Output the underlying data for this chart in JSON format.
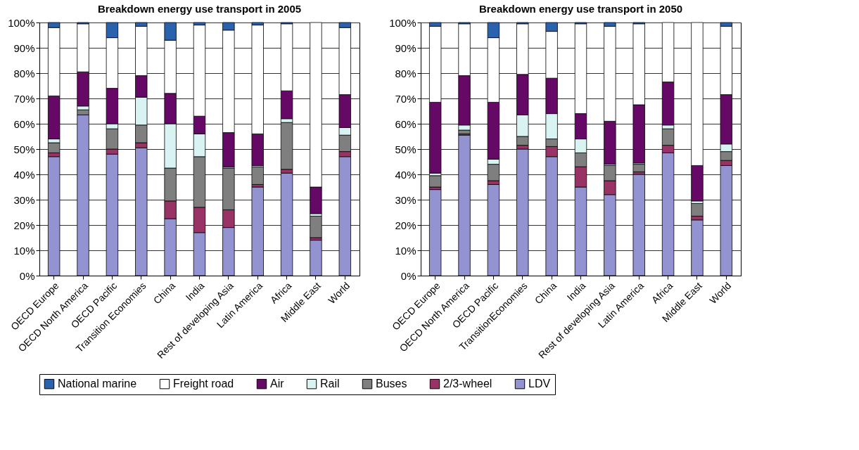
{
  "chart_data": [
    {
      "type": "bar",
      "title": "Breakdown energy use transport in 2005",
      "stacked": true,
      "grid": "y",
      "legend": "bottom",
      "categories": [
        "OECD Europe",
        "OECD North America",
        "OECD Pacific",
        "Transition Economies",
        "China",
        "India",
        "Rest of developing Asia",
        "Latin America",
        "Africa",
        "Middle East",
        "World"
      ],
      "ylim": [
        0,
        100
      ],
      "yticks": [
        {
          "value": 0,
          "label": "0%"
        },
        {
          "value": 10,
          "label": "10%"
        },
        {
          "value": 20,
          "label": "20%"
        },
        {
          "value": 30,
          "label": "30%"
        },
        {
          "value": 40,
          "label": "40%"
        },
        {
          "value": 50,
          "label": "50%"
        },
        {
          "value": 60,
          "label": "60%"
        },
        {
          "value": 70,
          "label": "70%"
        },
        {
          "value": 80,
          "label": "80%"
        },
        {
          "value": 90,
          "label": "90%"
        },
        {
          "value": 100,
          "label": "100%"
        }
      ],
      "series": [
        {
          "name": "LDV",
          "color": "#9393d2",
          "values": [
            47,
            63.5,
            48,
            50.5,
            22.5,
            17,
            19,
            35,
            40.5,
            14,
            47
          ]
        },
        {
          "name": "2/3-wheel",
          "color": "#993366",
          "values": [
            1.5,
            0,
            2,
            2,
            7,
            10,
            7,
            1,
            1.5,
            1,
            2
          ]
        },
        {
          "name": "Buses",
          "color": "#7f7f7f",
          "values": [
            4,
            2,
            8,
            7,
            13,
            20,
            16.5,
            7,
            18.5,
            8.5,
            6.5
          ]
        },
        {
          "name": "Rail",
          "color": "#d9f3f3",
          "values": [
            1.5,
            1.5,
            2,
            11,
            17.5,
            9,
            0.5,
            0.5,
            1.5,
            1,
            3
          ]
        },
        {
          "name": "Air",
          "color": "#660966",
          "values": [
            17,
            13.5,
            14,
            8.5,
            12,
            7,
            13.5,
            12.5,
            11,
            10.5,
            13
          ]
        },
        {
          "name": "Freight road",
          "color": "#ffffff",
          "values": [
            27,
            19,
            20,
            19.5,
            21,
            36,
            40.5,
            43,
            26.5,
            65,
            26.5
          ]
        },
        {
          "name": "National marine",
          "color": "#2a62ad",
          "values": [
            2,
            0.5,
            6,
            1.5,
            7,
            1,
            3,
            1,
            0.5,
            0,
            2
          ]
        }
      ]
    },
    {
      "type": "bar",
      "title": "Breakdown energy use transport in 2050",
      "stacked": true,
      "grid": "y",
      "legend": "bottom",
      "categories": [
        "OECD Europe",
        "OECD North America",
        "OECD Pacific",
        "TransitionEconomies",
        "China",
        "India",
        "Rest of developing Asia",
        "Latin America",
        "Africa",
        "Middle East",
        "World"
      ],
      "ylim": [
        0,
        100
      ],
      "yticks": [
        {
          "value": 0,
          "label": "0%"
        },
        {
          "value": 10,
          "label": "10%"
        },
        {
          "value": 20,
          "label": "20%"
        },
        {
          "value": 30,
          "label": "30%"
        },
        {
          "value": 40,
          "label": "40%"
        },
        {
          "value": 50,
          "label": "50%"
        },
        {
          "value": 60,
          "label": "60%"
        },
        {
          "value": 70,
          "label": "70%"
        },
        {
          "value": 80,
          "label": "80%"
        },
        {
          "value": 90,
          "label": "90%"
        },
        {
          "value": 100,
          "label": "100%"
        }
      ],
      "series": [
        {
          "name": "LDV",
          "color": "#9393d2",
          "values": [
            34,
            55.5,
            36,
            50,
            47,
            35,
            32,
            40,
            48.5,
            22,
            43.5
          ]
        },
        {
          "name": "2/3-wheel",
          "color": "#993366",
          "values": [
            1,
            0.5,
            1.5,
            1.5,
            4,
            8,
            5.5,
            1,
            3,
            1.5,
            2
          ]
        },
        {
          "name": "Buses",
          "color": "#7f7f7f",
          "values": [
            4.5,
            1.5,
            6.5,
            3.5,
            3,
            5.5,
            6,
            3,
            6.5,
            5,
            3.5
          ]
        },
        {
          "name": "Rail",
          "color": "#d9f3f3",
          "values": [
            1,
            2,
            2,
            8.5,
            10,
            5.5,
            0.5,
            0.5,
            1.5,
            1,
            3
          ]
        },
        {
          "name": "Air",
          "color": "#660966",
          "values": [
            28,
            19.5,
            22.5,
            16,
            14,
            10,
            17,
            23,
            17,
            14,
            19.5
          ]
        },
        {
          "name": "Freight road",
          "color": "#ffffff",
          "values": [
            30,
            20.5,
            25.5,
            20,
            18.5,
            35.5,
            37.5,
            32,
            23.5,
            56.5,
            27
          ]
        },
        {
          "name": "National marine",
          "color": "#2a62ad",
          "values": [
            1.5,
            0.5,
            6,
            0.5,
            3.5,
            0.5,
            1.5,
            0.5,
            0,
            0,
            1.5
          ]
        }
      ]
    }
  ]
}
